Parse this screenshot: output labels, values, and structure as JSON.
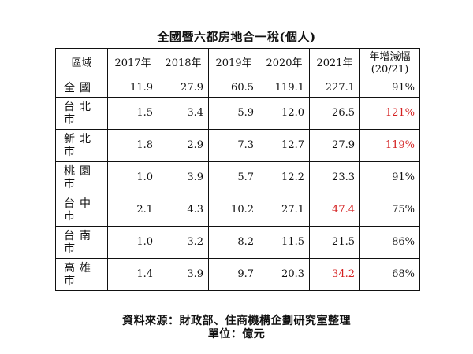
{
  "title": "全國暨六都房地合一稅(個人)",
  "headers": [
    "區域",
    "2017年",
    "2018年",
    "2019年",
    "2020年",
    "2021年",
    "年增減幅\n(20/21)"
  ],
  "rows": [
    {
      "region": "全國",
      "values": [
        "11.9",
        "27.9",
        "60.5",
        "119.1",
        "227.1",
        "91%"
      ],
      "red": []
    },
    {
      "region": "台北市",
      "values": [
        "1.5",
        "3.4",
        "5.9",
        "12.0",
        "26.5",
        "121%"
      ],
      "red": [
        5
      ]
    },
    {
      "region": "新北市",
      "values": [
        "1.8",
        "2.9",
        "7.3",
        "12.7",
        "27.9",
        "119%"
      ],
      "red": [
        5
      ]
    },
    {
      "region": "桃園市",
      "values": [
        "1.0",
        "3.9",
        "5.7",
        "12.2",
        "23.3",
        "91%"
      ],
      "red": []
    },
    {
      "region": "台中市",
      "values": [
        "2.1",
        "4.3",
        "10.2",
        "27.1",
        "47.4",
        "75%"
      ],
      "red": [
        4
      ]
    },
    {
      "region": "台南市",
      "values": [
        "1.0",
        "3.2",
        "8.2",
        "11.5",
        "21.5",
        "86%"
      ],
      "red": []
    },
    {
      "region": "高雄市",
      "values": [
        "1.4",
        "3.9",
        "9.7",
        "20.3",
        "34.2",
        "68%"
      ],
      "red": [
        4
      ]
    }
  ],
  "source": "資料來源：財政部、住商機構企劃研究室整理",
  "unit": "單位：億元",
  "colors": {
    "highlight": "#d42020",
    "text": "#111111",
    "border": "#111111"
  }
}
